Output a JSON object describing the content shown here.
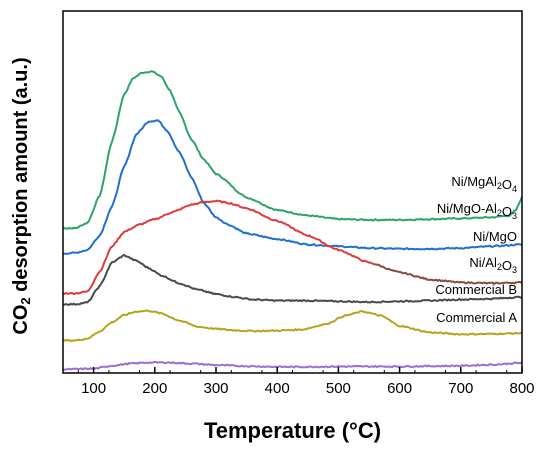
{
  "chart_data": {
    "type": "line",
    "xlabel": "Temperature (°C)",
    "ylabel": "CO2 desorption amount (a.u.)",
    "xlim": [
      50,
      800
    ],
    "ylim": [
      0,
      100
    ],
    "xticks": [
      100,
      200,
      300,
      400,
      500,
      600,
      700,
      800
    ],
    "y_tick_labels": false,
    "grid": false,
    "legend": "inline labels at right end of each curve",
    "series": [
      {
        "name": "Ni/MgAl2O4",
        "color": "#2ea36b",
        "x": [
          50,
          70,
          90,
          110,
          130,
          150,
          165,
          180,
          195,
          210,
          225,
          240,
          260,
          280,
          300,
          350,
          400,
          450,
          500,
          550,
          600,
          650,
          700,
          750,
          780,
          790,
          800
        ],
        "y": [
          40.0,
          40.0,
          41.5,
          49.0,
          64.0,
          77.0,
          81.5,
          83.0,
          83.3,
          82.0,
          78.0,
          72.0,
          64.5,
          59.0,
          55.0,
          48.5,
          45.0,
          43.5,
          42.5,
          42.3,
          42.3,
          42.5,
          42.7,
          43.0,
          43.5,
          45.0,
          48.5
        ]
      },
      {
        "name": "Ni/MgO-Al2O3",
        "color": "#1f6fd1",
        "x": [
          50,
          70,
          90,
          110,
          130,
          150,
          170,
          190,
          205,
          220,
          240,
          260,
          280,
          300,
          320,
          350,
          400,
          450,
          500,
          550,
          600,
          650,
          700,
          750,
          800
        ],
        "y": [
          33.0,
          33.2,
          34.0,
          38.0,
          46.0,
          57.0,
          66.0,
          69.5,
          69.8,
          67.0,
          61.0,
          54.0,
          47.0,
          43.0,
          41.0,
          38.5,
          37.0,
          35.5,
          35.0,
          34.5,
          34.3,
          34.3,
          34.5,
          35.0,
          35.5
        ]
      },
      {
        "name": "Ni/MgO",
        "color": "#e03a3a",
        "tail_color": "#8b4a3a",
        "x": [
          50,
          70,
          90,
          110,
          130,
          150,
          175,
          200,
          230,
          260,
          280,
          300,
          320,
          350,
          400,
          450,
          500,
          550,
          600,
          650,
          700,
          750,
          800
        ],
        "y": [
          22.0,
          22.0,
          22.5,
          28.0,
          35.0,
          39.0,
          41.0,
          42.5,
          44.5,
          46.5,
          47.2,
          47.5,
          47.0,
          45.5,
          42.0,
          38.0,
          34.0,
          30.5,
          27.8,
          25.8,
          25.0,
          24.8,
          25.0
        ]
      },
      {
        "name": "Ni/Al2O3",
        "color": "#4a4a4a",
        "x": [
          50,
          70,
          90,
          110,
          130,
          150,
          170,
          190,
          210,
          240,
          270,
          300,
          330,
          360,
          400,
          450,
          500,
          550,
          600,
          650,
          700,
          750,
          800
        ],
        "y": [
          19.0,
          19.0,
          19.5,
          24.0,
          30.5,
          32.5,
          31.0,
          29.0,
          27.0,
          24.8,
          23.0,
          21.8,
          21.0,
          20.3,
          20.0,
          20.0,
          19.8,
          19.6,
          19.8,
          20.0,
          20.3,
          20.5,
          21.0
        ]
      },
      {
        "name": "Commercial B",
        "color": "#b7a41c",
        "x": [
          50,
          70,
          90,
          110,
          130,
          150,
          170,
          190,
          210,
          240,
          270,
          300,
          330,
          360,
          400,
          440,
          480,
          510,
          540,
          570,
          600,
          650,
          700,
          750,
          800
        ],
        "y": [
          9.0,
          9.0,
          9.5,
          11.5,
          14.0,
          16.0,
          17.0,
          17.2,
          16.5,
          14.5,
          12.8,
          12.2,
          11.8,
          11.6,
          11.7,
          12.0,
          13.5,
          15.8,
          17.0,
          15.8,
          13.0,
          11.2,
          10.7,
          10.8,
          11.0
        ]
      },
      {
        "name": "Commercial A",
        "color": "#9b6fd6",
        "x": [
          50,
          100,
          130,
          160,
          190,
          220,
          260,
          300,
          350,
          400,
          450,
          500,
          550,
          600,
          650,
          700,
          750,
          800
        ],
        "y": [
          1.0,
          1.2,
          2.0,
          2.6,
          2.9,
          2.9,
          2.6,
          2.2,
          1.9,
          1.7,
          1.7,
          1.8,
          1.8,
          1.8,
          1.9,
          2.0,
          2.3,
          2.8
        ]
      }
    ]
  }
}
